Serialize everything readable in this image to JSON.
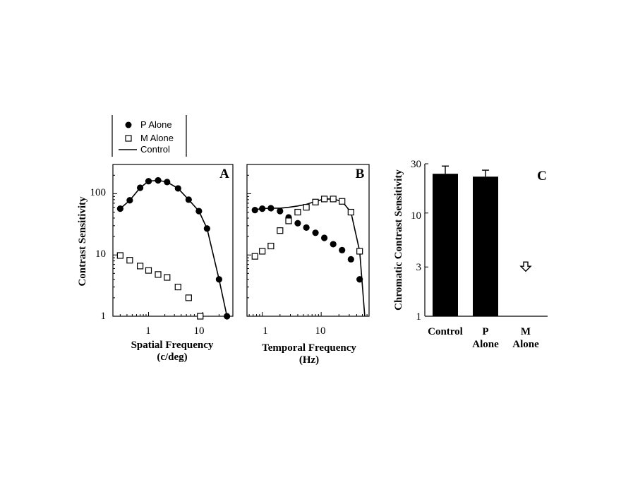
{
  "legend": {
    "items": [
      {
        "label": "P Alone",
        "marker": "filled-circle"
      },
      {
        "label": "M Alone",
        "marker": "open-square"
      },
      {
        "label": "Control",
        "marker": "line"
      }
    ]
  },
  "chart_data": [
    {
      "type": "line",
      "panel": "A",
      "xscale": "log",
      "yscale": "log",
      "xlabel": "Spatial Frequency",
      "xlabel_units": "(c/deg)",
      "ylabel": "Contrast Sensitivity",
      "xlim": [
        0.22,
        36
      ],
      "ylim": [
        1,
        300
      ],
      "xticks": [
        1,
        10
      ],
      "xtick_labels": [
        "1",
        "10"
      ],
      "yticks": [
        1,
        10,
        100
      ],
      "ytick_labels": [
        "1",
        "10",
        "100"
      ],
      "series": [
        {
          "name": "P Alone",
          "marker": "filled-circle",
          "x": [
            0.3,
            0.45,
            0.7,
            1.0,
            1.5,
            2.2,
            3.5,
            5.5,
            8.5,
            12,
            20,
            28
          ],
          "y": [
            57,
            78,
            125,
            160,
            165,
            155,
            122,
            80,
            52,
            27,
            4,
            1
          ]
        },
        {
          "name": "M Alone",
          "marker": "open-square",
          "x": [
            0.3,
            0.45,
            0.7,
            1.0,
            1.5,
            2.2,
            3.5,
            5.5,
            9
          ],
          "y": [
            9.8,
            8.2,
            6.6,
            5.6,
            4.8,
            4.3,
            3.0,
            2.0,
            1.0
          ]
        },
        {
          "name": "Control",
          "marker": "line",
          "x": [
            0.3,
            0.45,
            0.7,
            1.0,
            1.5,
            2.2,
            3.5,
            5.5,
            8.5,
            12,
            20,
            28
          ],
          "y": [
            57,
            78,
            125,
            160,
            165,
            155,
            122,
            80,
            52,
            27,
            4,
            1
          ]
        }
      ]
    },
    {
      "type": "line",
      "panel": "B",
      "xscale": "log",
      "yscale": "log",
      "xlabel": "Temporal Frequency",
      "xlabel_units": "(Hz)",
      "xlim": [
        0.55,
        65
      ],
      "ylim": [
        1,
        300
      ],
      "xticks": [
        1,
        10
      ],
      "xtick_labels": [
        "1",
        "10"
      ],
      "yticks": [
        1,
        10,
        100
      ],
      "series": [
        {
          "name": "P Alone",
          "marker": "filled-circle",
          "x": [
            0.75,
            1.0,
            1.4,
            2.0,
            2.8,
            4.0,
            5.6,
            8.0,
            11.3,
            16,
            22.6,
            32,
            45
          ],
          "y": [
            54,
            57,
            58,
            52,
            41,
            33,
            28,
            23,
            19,
            15,
            12,
            8.5,
            4.0
          ]
        },
        {
          "name": "M Alone",
          "marker": "open-square",
          "x": [
            0.75,
            1.0,
            1.4,
            2.0,
            2.8,
            4.0,
            5.6,
            8.0,
            11.3,
            16,
            22.6,
            32,
            45
          ],
          "y": [
            9.5,
            11.5,
            14,
            25,
            36,
            50,
            60,
            73,
            82,
            82,
            75,
            50,
            11.5
          ]
        },
        {
          "name": "Control",
          "marker": "line",
          "x": [
            0.75,
            1.0,
            1.4,
            2.0,
            2.8,
            4.0,
            5.6,
            8.0,
            11.3,
            16,
            22.6,
            32,
            45,
            55
          ],
          "y": [
            55,
            57,
            58,
            58,
            60,
            63,
            67,
            75,
            82,
            82,
            75,
            50,
            11.5,
            1.0
          ]
        }
      ]
    },
    {
      "type": "bar",
      "panel": "C",
      "yscale": "log",
      "ylabel": "Chromatic Contrast Sensitivity",
      "ylim": [
        1,
        30
      ],
      "yticks": [
        1,
        3,
        10,
        30
      ],
      "ytick_labels": [
        "1",
        "3",
        "10",
        "30"
      ],
      "categories": [
        {
          "line1": "Control",
          "line2": ""
        },
        {
          "line1": "P",
          "line2": "Alone"
        },
        {
          "line1": "M",
          "line2": "Alone"
        }
      ],
      "values": [
        24,
        22.5,
        null
      ],
      "error_upper": [
        28.5,
        26,
        null
      ],
      "arrow_value": 3,
      "arrow_category": 2
    }
  ],
  "panel_letters": [
    "A",
    "B",
    "C"
  ]
}
